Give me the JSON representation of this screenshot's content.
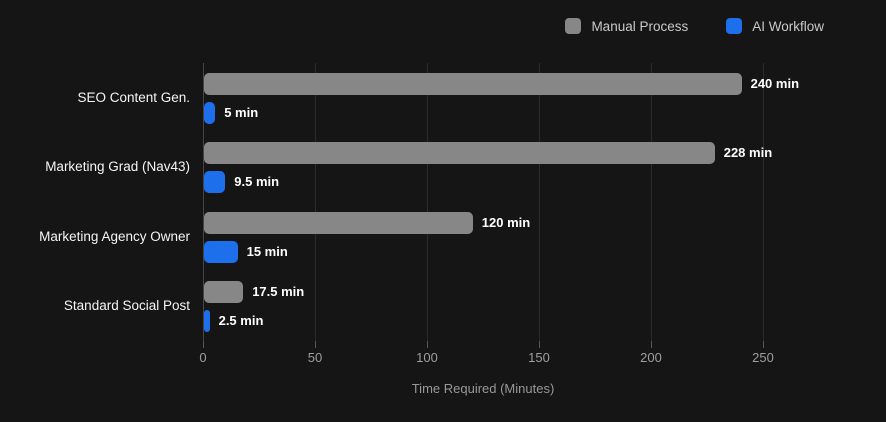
{
  "colors": {
    "background": "#151515",
    "manual_bar": "#878787",
    "ai_bar": "#1e6feb",
    "gridline": "#2b2b2b",
    "zero_line": "#454545",
    "value_label": "#ffffff",
    "category_label": "#f5f5f5",
    "tick_label": "#9e9e9e",
    "axis_title": "#989898",
    "legend_text": "#c9c9c9"
  },
  "chart_data": {
    "type": "bar",
    "orientation": "horizontal",
    "title": "",
    "categories": [
      "SEO Content Gen.",
      "Marketing Grad (Nav43)",
      "Marketing Agency Owner",
      "Standard Social Post"
    ],
    "series": [
      {
        "name": "Manual Process",
        "color": "#878787",
        "values": [
          240,
          228,
          120,
          17.5
        ],
        "labels": [
          "240 min",
          "228 min",
          "120 min",
          "17.5 min"
        ]
      },
      {
        "name": "AI Workflow",
        "color": "#1e6feb",
        "values": [
          5,
          9.5,
          15,
          2.5
        ],
        "labels": [
          "5 min",
          "9.5 min",
          "15 min",
          "2.5 min"
        ]
      }
    ],
    "xlabel": "Time Required (Minutes)",
    "xlim": [
      0,
      250
    ],
    "xticks": [
      0,
      50,
      100,
      150,
      200,
      250
    ],
    "xtick_labels": [
      "0",
      "50",
      "100",
      "150",
      "200",
      "250"
    ],
    "grid": true,
    "legend_position": "top-right"
  }
}
